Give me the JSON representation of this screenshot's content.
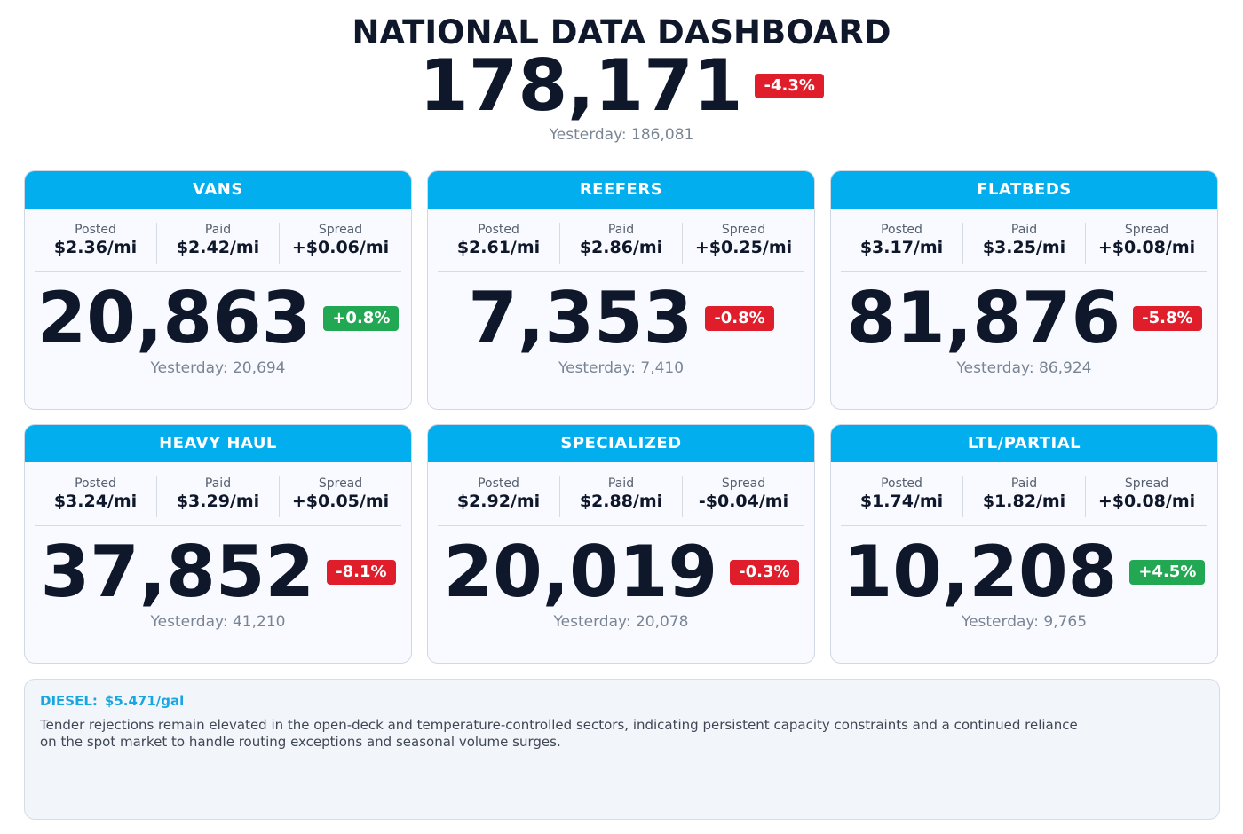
{
  "header": {
    "title": "NATIONAL DATA DASHBOARD",
    "value": "178,171",
    "change": "-4.3%",
    "change_color": "#e01e2b",
    "yesterday": "Yesterday: 186,081"
  },
  "cards": [
    {
      "title": "VANS",
      "metrics": [
        {
          "label": "Posted",
          "value": "$2.36/mi"
        },
        {
          "label": "Paid",
          "value": "$2.42/mi"
        },
        {
          "label": "Spread",
          "value": "+$0.06/mi"
        }
      ],
      "value": "20,863",
      "change": "+0.8%",
      "change_color": "#22a753",
      "yesterday": "Yesterday: 20,694"
    },
    {
      "title": "REEFERS",
      "metrics": [
        {
          "label": "Posted",
          "value": "$2.61/mi"
        },
        {
          "label": "Paid",
          "value": "$2.86/mi"
        },
        {
          "label": "Spread",
          "value": "+$0.25/mi"
        }
      ],
      "value": "7,353",
      "change": "-0.8%",
      "change_color": "#e01e2b",
      "yesterday": "Yesterday: 7,410"
    },
    {
      "title": "FLATBEDS",
      "metrics": [
        {
          "label": "Posted",
          "value": "$3.17/mi"
        },
        {
          "label": "Paid",
          "value": "$3.25/mi"
        },
        {
          "label": "Spread",
          "value": "+$0.08/mi"
        }
      ],
      "value": "81,876",
      "change": "-5.8%",
      "change_color": "#e01e2b",
      "yesterday": "Yesterday: 86,924"
    },
    {
      "title": "HEAVY HAUL",
      "metrics": [
        {
          "label": "Posted",
          "value": "$3.24/mi"
        },
        {
          "label": "Paid",
          "value": "$3.29/mi"
        },
        {
          "label": "Spread",
          "value": "+$0.05/mi"
        }
      ],
      "value": "37,852",
      "change": "-8.1%",
      "change_color": "#e01e2b",
      "yesterday": "Yesterday: 41,210"
    },
    {
      "title": "SPECIALIZED",
      "metrics": [
        {
          "label": "Posted",
          "value": "$2.92/mi"
        },
        {
          "label": "Paid",
          "value": "$2.88/mi"
        },
        {
          "label": "Spread",
          "value": "-$0.04/mi"
        }
      ],
      "value": "20,019",
      "change": "-0.3%",
      "change_color": "#e01e2b",
      "yesterday": "Yesterday: 20,078"
    },
    {
      "title": "LTL/PARTIAL",
      "metrics": [
        {
          "label": "Posted",
          "value": "$1.74/mi"
        },
        {
          "label": "Paid",
          "value": "$1.82/mi"
        },
        {
          "label": "Spread",
          "value": "+$0.08/mi"
        }
      ],
      "value": "10,208",
      "change": "+4.5%",
      "change_color": "#22a753",
      "yesterday": "Yesterday: 9,765"
    }
  ],
  "footer": {
    "diesel_label": "DIESEL:",
    "diesel_value": "$5.471/gal",
    "text": "Tender rejections remain elevated in the open-deck and temperature-controlled sectors, indicating persistent capacity constraints and a continued reliance on the spot market to handle routing exceptions and seasonal volume surges."
  }
}
